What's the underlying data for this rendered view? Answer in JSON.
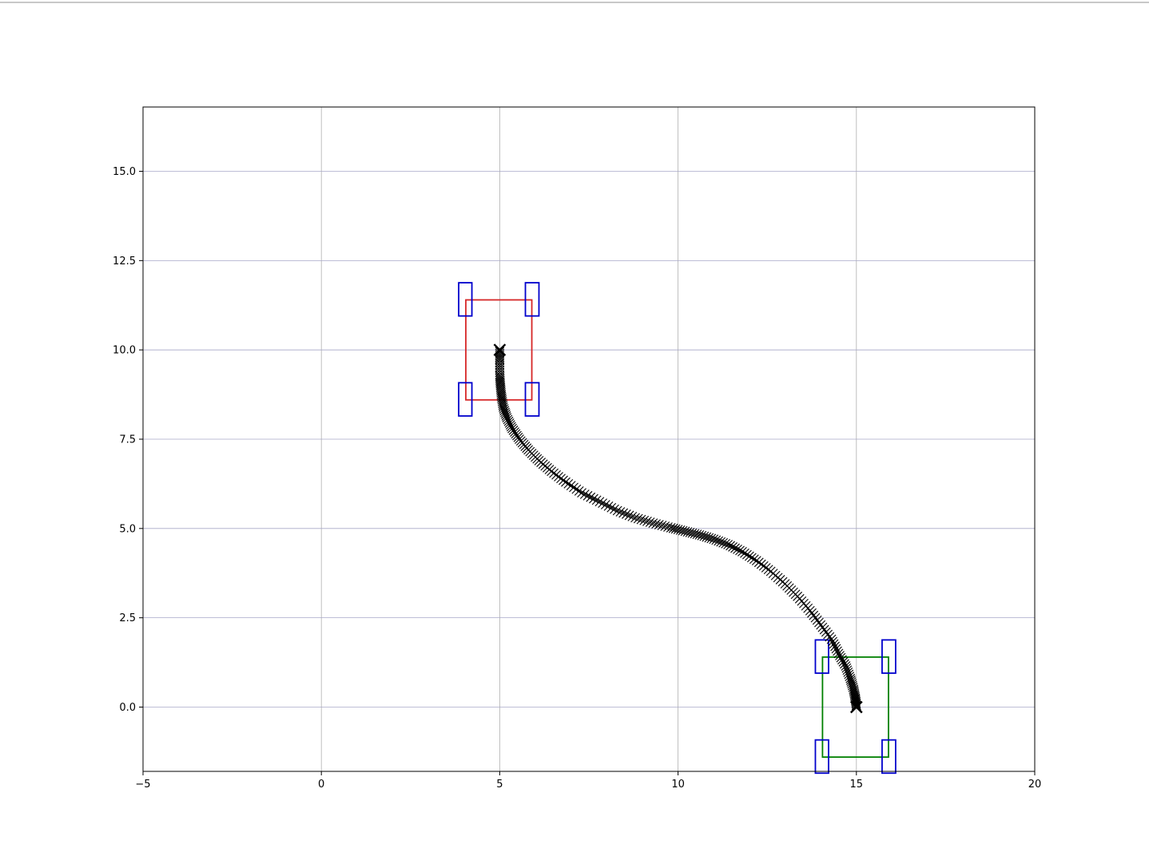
{
  "chart_data": {
    "type": "scatter",
    "title": "",
    "xlabel": "",
    "ylabel": "",
    "xlim": [
      -5,
      20
    ],
    "ylim": [
      -1.8,
      16.8
    ],
    "xticks": [
      -5,
      0,
      5,
      10,
      15,
      20
    ],
    "xtick_labels": [
      "−5",
      "0",
      "5",
      "10",
      "15",
      "20"
    ],
    "yticks": [
      0,
      2.5,
      5,
      7.5,
      10,
      12.5,
      15
    ],
    "ytick_labels": [
      "0.0",
      "2.5",
      "5.0",
      "7.5",
      "10.0",
      "12.5",
      "15.0"
    ],
    "grid": true,
    "trajectory": {
      "marker": "x",
      "color": "#000000",
      "x": [
        5.0,
        5.0,
        5.0,
        5.02,
        5.05,
        5.1,
        5.2,
        5.35,
        5.55,
        5.8,
        6.1,
        6.45,
        6.85,
        7.3,
        7.8,
        8.3,
        8.8,
        9.3,
        9.8,
        10.2,
        10.6,
        11.0,
        11.4,
        11.8,
        12.2,
        12.6,
        13.0,
        13.35,
        13.7,
        14.0,
        14.3,
        14.5,
        14.7,
        14.83,
        14.92,
        14.97,
        15.0,
        15.0
      ],
      "y": [
        10.0,
        9.7,
        9.3,
        9.0,
        8.7,
        8.4,
        8.1,
        7.8,
        7.5,
        7.2,
        6.9,
        6.6,
        6.3,
        6.0,
        5.75,
        5.5,
        5.3,
        5.15,
        5.02,
        4.92,
        4.82,
        4.7,
        4.55,
        4.35,
        4.1,
        3.8,
        3.45,
        3.1,
        2.7,
        2.3,
        1.9,
        1.5,
        1.15,
        0.8,
        0.5,
        0.25,
        0.05,
        0.0
      ]
    },
    "start_vehicle": {
      "body_color": "#d62728",
      "wheel_color": "#0000cc",
      "center": [
        5.0,
        10.0
      ],
      "body": {
        "x_min": 4.05,
        "x_max": 5.9,
        "y_min": 8.6,
        "y_max": 11.4
      },
      "wheels": [
        {
          "x_min": 3.85,
          "x_max": 4.22,
          "y_min": 10.95,
          "y_max": 11.88
        },
        {
          "x_min": 5.72,
          "x_max": 6.1,
          "y_min": 10.95,
          "y_max": 11.88
        },
        {
          "x_min": 3.85,
          "x_max": 4.22,
          "y_min": 8.15,
          "y_max": 9.08
        },
        {
          "x_min": 5.72,
          "x_max": 6.1,
          "y_min": 8.15,
          "y_max": 9.08
        }
      ]
    },
    "goal_vehicle": {
      "body_color": "#008000",
      "wheel_color": "#0000cc",
      "center": [
        15.0,
        0.0
      ],
      "body": {
        "x_min": 14.05,
        "x_max": 15.9,
        "y_min": -1.4,
        "y_max": 1.4
      },
      "wheels": [
        {
          "x_min": 13.85,
          "x_max": 14.22,
          "y_min": 0.95,
          "y_max": 1.88
        },
        {
          "x_min": 15.72,
          "x_max": 16.1,
          "y_min": 0.95,
          "y_max": 1.88
        },
        {
          "x_min": 13.85,
          "x_max": 14.22,
          "y_min": -1.85,
          "y_max": -0.92
        },
        {
          "x_min": 15.72,
          "x_max": 16.1,
          "y_min": -1.85,
          "y_max": -0.92
        }
      ]
    }
  }
}
